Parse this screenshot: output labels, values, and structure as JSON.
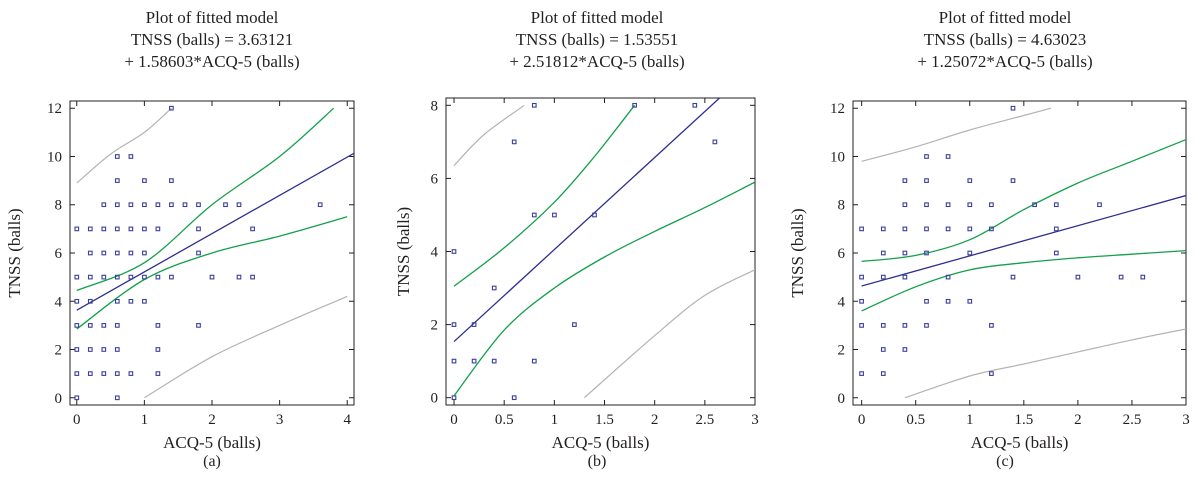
{
  "figure": {
    "background": "#ffffff",
    "text_color": "#231f20",
    "point_color": "#3b3f9c",
    "fit_line_color": "#2e2f8f",
    "confidence_color": "#13a04a",
    "prediction_color": "#b4b4b4"
  },
  "chart_data": [
    {
      "type": "scatter",
      "panel_label": "(a)",
      "title": [
        "Plot of fitted model",
        "TNSS (balls) = 3.63121",
        "+ 1.58603*ACQ-5 (balls)"
      ],
      "xlabel": "ACQ-5 (balls)",
      "ylabel": "TNSS (balls)",
      "xlim": [
        -0.1,
        4.1
      ],
      "ylim": [
        -0.3,
        12.3
      ],
      "xticks": [
        0,
        1,
        2,
        3,
        4
      ],
      "xtick_labels": [
        "0",
        "1",
        "2",
        "3",
        "4"
      ],
      "yticks": [
        0,
        2,
        4,
        6,
        8,
        10,
        12
      ],
      "ytick_labels": [
        "0",
        "2",
        "4",
        "6",
        "8",
        "10",
        "12"
      ],
      "fit": {
        "intercept": 3.63121,
        "slope": 1.58603
      },
      "confidence_upper": [
        [
          0,
          4.45
        ],
        [
          1,
          5.6
        ],
        [
          2,
          8.0
        ],
        [
          3,
          10.0
        ],
        [
          3.8,
          12.0
        ]
      ],
      "confidence_lower": [
        [
          0,
          2.85
        ],
        [
          1,
          4.9
        ],
        [
          2,
          6.0
        ],
        [
          3,
          6.7
        ],
        [
          4,
          7.5
        ]
      ],
      "prediction_upper": [
        [
          0,
          8.9
        ],
        [
          0.5,
          10.1
        ],
        [
          1,
          11.0
        ],
        [
          1.4,
          12.0
        ]
      ],
      "prediction_lower": [
        [
          1,
          0.0
        ],
        [
          2,
          1.7
        ],
        [
          3,
          3.0
        ],
        [
          4,
          4.2
        ]
      ],
      "points": [
        [
          0,
          0
        ],
        [
          0,
          1
        ],
        [
          0,
          2
        ],
        [
          0,
          3
        ],
        [
          0,
          4
        ],
        [
          0,
          5
        ],
        [
          0,
          7
        ],
        [
          0.2,
          1
        ],
        [
          0.2,
          2
        ],
        [
          0.2,
          3
        ],
        [
          0.2,
          4
        ],
        [
          0.2,
          5
        ],
        [
          0.2,
          6
        ],
        [
          0.2,
          7
        ],
        [
          0.4,
          1
        ],
        [
          0.4,
          2
        ],
        [
          0.4,
          3
        ],
        [
          0.4,
          5
        ],
        [
          0.4,
          6
        ],
        [
          0.4,
          7
        ],
        [
          0.4,
          8
        ],
        [
          0.6,
          0
        ],
        [
          0.6,
          1
        ],
        [
          0.6,
          2
        ],
        [
          0.6,
          3
        ],
        [
          0.6,
          4
        ],
        [
          0.6,
          5
        ],
        [
          0.6,
          6
        ],
        [
          0.6,
          7
        ],
        [
          0.6,
          8
        ],
        [
          0.6,
          9
        ],
        [
          0.6,
          10
        ],
        [
          0.8,
          1
        ],
        [
          0.8,
          4
        ],
        [
          0.8,
          5
        ],
        [
          0.8,
          6
        ],
        [
          0.8,
          7
        ],
        [
          0.8,
          8
        ],
        [
          0.8,
          10
        ],
        [
          1.0,
          4
        ],
        [
          1.0,
          5
        ],
        [
          1.0,
          6
        ],
        [
          1.0,
          7
        ],
        [
          1.0,
          8
        ],
        [
          1.0,
          9
        ],
        [
          1.2,
          1
        ],
        [
          1.2,
          2
        ],
        [
          1.2,
          3
        ],
        [
          1.2,
          5
        ],
        [
          1.2,
          7
        ],
        [
          1.2,
          8
        ],
        [
          1.4,
          5
        ],
        [
          1.4,
          8
        ],
        [
          1.4,
          9
        ],
        [
          1.4,
          12
        ],
        [
          1.6,
          8
        ],
        [
          1.8,
          3
        ],
        [
          1.8,
          6
        ],
        [
          1.8,
          7
        ],
        [
          1.8,
          8
        ],
        [
          2.0,
          5
        ],
        [
          2.2,
          8
        ],
        [
          2.4,
          5
        ],
        [
          2.4,
          8
        ],
        [
          2.6,
          5
        ],
        [
          2.6,
          7
        ],
        [
          3.6,
          8
        ]
      ]
    },
    {
      "type": "scatter",
      "panel_label": "(b)",
      "title": [
        "Plot of fitted model",
        "TNSS (balls) = 1.53551",
        "+ 2.51812*ACQ-5 (balls)"
      ],
      "xlabel": "ACQ-5 (balls)",
      "ylabel": "TNSS (balls)",
      "xlim": [
        -0.08,
        3.0
      ],
      "ylim": [
        -0.2,
        8.2
      ],
      "xticks": [
        0,
        0.5,
        1,
        1.5,
        2,
        2.5,
        3
      ],
      "xtick_labels": [
        "0",
        "0.5",
        "1",
        "1.5",
        "2",
        "2.5",
        "3"
      ],
      "yticks": [
        0,
        2,
        4,
        6,
        8
      ],
      "ytick_labels": [
        "0",
        "2",
        "4",
        "6",
        "8"
      ],
      "fit": {
        "intercept": 1.53551,
        "slope": 2.51812
      },
      "confidence_upper": [
        [
          0,
          3.05
        ],
        [
          0.5,
          4.1
        ],
        [
          1,
          5.35
        ],
        [
          1.4,
          6.6
        ],
        [
          1.8,
          8.0
        ]
      ],
      "confidence_lower": [
        [
          0,
          0.05
        ],
        [
          0.5,
          1.85
        ],
        [
          1,
          3.0
        ],
        [
          1.5,
          3.85
        ],
        [
          2,
          4.55
        ],
        [
          2.5,
          5.2
        ],
        [
          3,
          5.9
        ]
      ],
      "prediction_upper": [
        [
          0,
          6.35
        ],
        [
          0.3,
          7.2
        ],
        [
          0.7,
          8.0
        ]
      ],
      "prediction_lower": [
        [
          1.3,
          0.0
        ],
        [
          2,
          1.7
        ],
        [
          2.5,
          2.8
        ],
        [
          3,
          3.5
        ]
      ],
      "points": [
        [
          0,
          0
        ],
        [
          0,
          1
        ],
        [
          0,
          2
        ],
        [
          0,
          4
        ],
        [
          0.2,
          1
        ],
        [
          0.2,
          2
        ],
        [
          0.4,
          1
        ],
        [
          0.4,
          3
        ],
        [
          0.6,
          0
        ],
        [
          0.6,
          7
        ],
        [
          0.8,
          1
        ],
        [
          0.8,
          5
        ],
        [
          0.8,
          8
        ],
        [
          1.0,
          5
        ],
        [
          1.2,
          2
        ],
        [
          1.4,
          5
        ],
        [
          1.8,
          8
        ],
        [
          2.4,
          8
        ],
        [
          2.6,
          7
        ]
      ]
    },
    {
      "type": "scatter",
      "panel_label": "(c)",
      "title": [
        "Plot of fitted model",
        "TNSS (balls) = 4.63023",
        "+ 1.25072*ACQ-5 (balls)"
      ],
      "xlabel": "ACQ-5 (balls)",
      "ylabel": "TNSS (balls)",
      "xlim": [
        -0.08,
        3.0
      ],
      "ylim": [
        -0.3,
        12.3
      ],
      "xticks": [
        0,
        0.5,
        1,
        1.5,
        2,
        2.5,
        3
      ],
      "xtick_labels": [
        "0",
        "0.5",
        "1",
        "1.5",
        "2",
        "2.5",
        "3"
      ],
      "yticks": [
        0,
        2,
        4,
        6,
        8,
        10,
        12
      ],
      "ytick_labels": [
        "0",
        "2",
        "4",
        "6",
        "8",
        "10",
        "12"
      ],
      "fit": {
        "intercept": 4.63023,
        "slope": 1.25072
      },
      "confidence_upper": [
        [
          0,
          5.65
        ],
        [
          0.5,
          5.9
        ],
        [
          1,
          6.55
        ],
        [
          1.5,
          7.8
        ],
        [
          2,
          8.9
        ],
        [
          2.5,
          9.8
        ],
        [
          3,
          10.7
        ]
      ],
      "confidence_lower": [
        [
          0,
          3.6
        ],
        [
          0.5,
          4.6
        ],
        [
          1,
          5.3
        ],
        [
          1.5,
          5.6
        ],
        [
          2,
          5.8
        ],
        [
          2.5,
          5.95
        ],
        [
          3,
          6.1
        ]
      ],
      "prediction_upper": [
        [
          0,
          9.8
        ],
        [
          0.5,
          10.4
        ],
        [
          1,
          11.1
        ],
        [
          1.5,
          11.7
        ],
        [
          1.75,
          12.0
        ]
      ],
      "prediction_lower": [
        [
          0.4,
          0.0
        ],
        [
          1,
          0.9
        ],
        [
          1.5,
          1.4
        ],
        [
          2,
          1.9
        ],
        [
          2.5,
          2.4
        ],
        [
          3,
          2.85
        ]
      ],
      "points": [
        [
          0,
          1
        ],
        [
          0,
          3
        ],
        [
          0,
          4
        ],
        [
          0,
          5
        ],
        [
          0,
          7
        ],
        [
          0.2,
          1
        ],
        [
          0.2,
          2
        ],
        [
          0.2,
          3
        ],
        [
          0.2,
          5
        ],
        [
          0.2,
          6
        ],
        [
          0.2,
          7
        ],
        [
          0.4,
          2
        ],
        [
          0.4,
          3
        ],
        [
          0.4,
          5
        ],
        [
          0.4,
          6
        ],
        [
          0.4,
          7
        ],
        [
          0.4,
          8
        ],
        [
          0.4,
          9
        ],
        [
          0.6,
          3
        ],
        [
          0.6,
          4
        ],
        [
          0.6,
          6
        ],
        [
          0.6,
          7
        ],
        [
          0.6,
          8
        ],
        [
          0.6,
          9
        ],
        [
          0.6,
          10
        ],
        [
          0.8,
          4
        ],
        [
          0.8,
          5
        ],
        [
          0.8,
          7
        ],
        [
          0.8,
          8
        ],
        [
          0.8,
          10
        ],
        [
          1.0,
          4
        ],
        [
          1.0,
          6
        ],
        [
          1.0,
          7
        ],
        [
          1.0,
          8
        ],
        [
          1.0,
          9
        ],
        [
          1.2,
          1
        ],
        [
          1.2,
          3
        ],
        [
          1.2,
          7
        ],
        [
          1.2,
          8
        ],
        [
          1.4,
          5
        ],
        [
          1.4,
          9
        ],
        [
          1.4,
          12
        ],
        [
          1.6,
          8
        ],
        [
          1.8,
          6
        ],
        [
          1.8,
          7
        ],
        [
          1.8,
          8
        ],
        [
          2.0,
          5
        ],
        [
          2.2,
          8
        ],
        [
          2.4,
          5
        ],
        [
          2.6,
          5
        ]
      ]
    }
  ]
}
